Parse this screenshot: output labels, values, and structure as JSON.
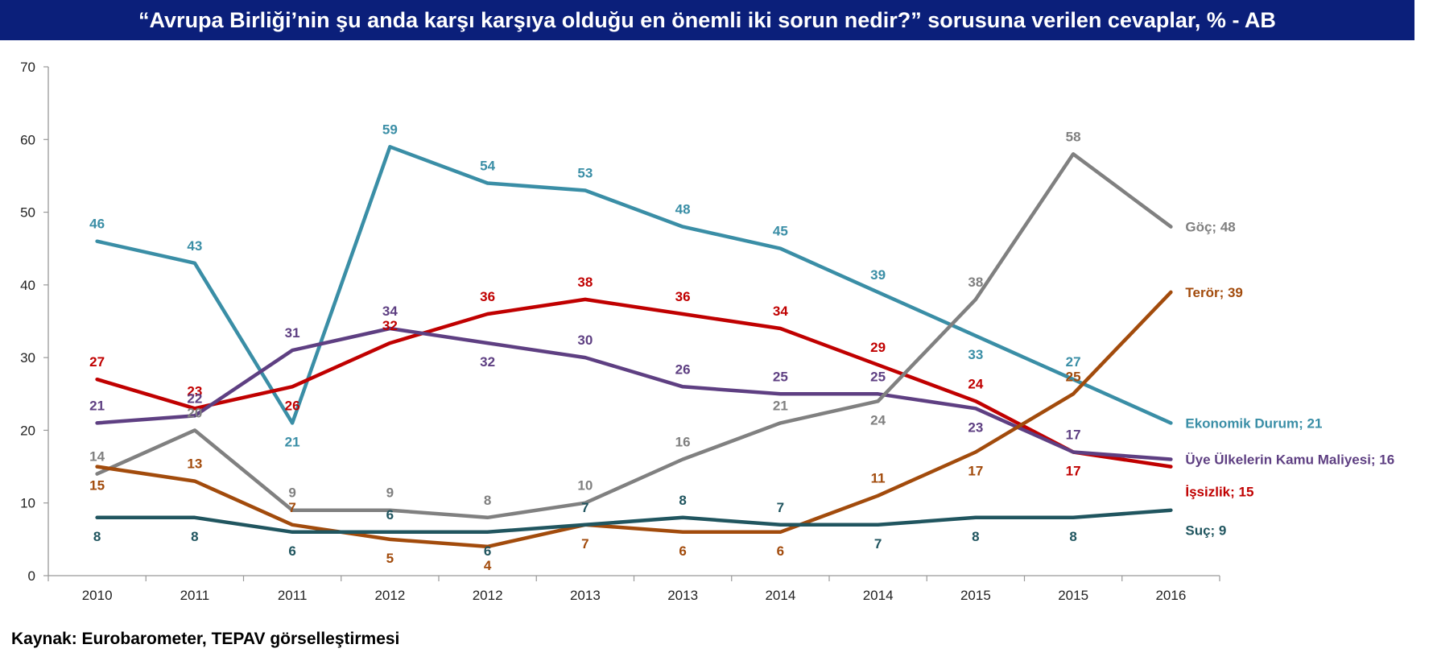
{
  "title": "“Avrupa Birliği’nin şu anda karşı karşıya olduğu en önemli iki sorun nedir?” sorusuna verilen cevaplar, % - AB",
  "source": "Kaynak:  Eurobarometer, TEPAV görselleştirmesi",
  "chart_data": {
    "type": "line",
    "x": [
      "2010",
      "2011",
      "2011",
      "2012",
      "2012",
      "2013",
      "2013",
      "2014",
      "2014",
      "2015",
      "2015",
      "2016"
    ],
    "ylim": [
      0,
      70
    ],
    "yticks": [
      0,
      10,
      20,
      30,
      40,
      50,
      60,
      70
    ],
    "grid": false,
    "series": [
      {
        "name": "Ekonomik Durum",
        "end_label": "Ekonomik Durum; 21",
        "color": "#3a8ea6",
        "values": [
          46,
          43,
          21,
          59,
          54,
          53,
          48,
          45,
          39,
          33,
          27,
          21
        ]
      },
      {
        "name": "İşsizlik",
        "end_label": "İşsizlik; 15",
        "color": "#c00000",
        "values": [
          27,
          23,
          26,
          32,
          36,
          38,
          36,
          34,
          29,
          24,
          17,
          15
        ]
      },
      {
        "name": "Üye Ülkelerin Kamu Maliyesi",
        "end_label": "Üye Ülkelerin Kamu Maliyesi; 16",
        "color": "#5e3f82",
        "values": [
          21,
          22,
          31,
          34,
          32,
          30,
          26,
          25,
          25,
          23,
          17,
          16
        ]
      },
      {
        "name": "Göç",
        "end_label": "Göç; 48",
        "color": "#808080",
        "values": [
          14,
          20,
          9,
          9,
          8,
          10,
          16,
          21,
          24,
          38,
          58,
          48
        ]
      },
      {
        "name": "Terör",
        "end_label": "Terör; 39",
        "color": "#a24b0c",
        "values": [
          15,
          13,
          7,
          5,
          4,
          7,
          6,
          6,
          11,
          17,
          25,
          39
        ]
      },
      {
        "name": "Suç",
        "end_label": "Suç; 9",
        "color": "#20555f",
        "values": [
          8,
          8,
          6,
          6,
          6,
          7,
          8,
          7,
          7,
          8,
          8,
          9
        ]
      }
    ]
  }
}
